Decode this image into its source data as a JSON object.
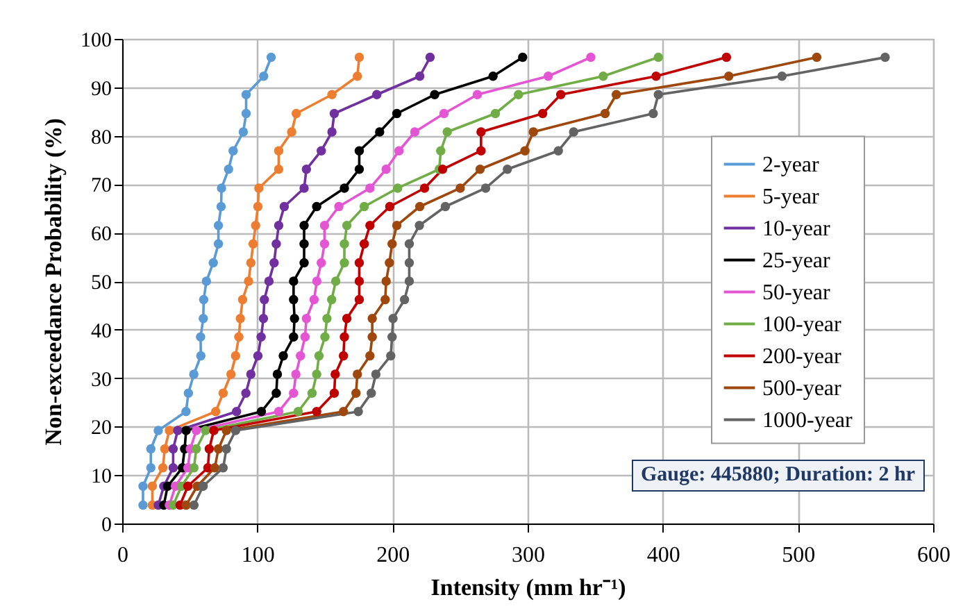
{
  "chart_data": {
    "type": "line",
    "xlabel": "Intensity (mm hr⁻¹)",
    "ylabel": "Non-exceedance Probability (%)",
    "xlim": [
      0,
      600
    ],
    "xticks": [
      0,
      100,
      200,
      300,
      400,
      500,
      600
    ],
    "ylim": [
      0,
      100
    ],
    "yticks": [
      0,
      10,
      20,
      30,
      40,
      50,
      60,
      70,
      80,
      90,
      100
    ],
    "grid": true,
    "legend": "right",
    "marker": "circle",
    "line_style": "solid",
    "annotations": [
      "Gauge: 445880; Duration: 2 hr"
    ],
    "series": [
      {
        "name": "2-year",
        "color": "#5b9bd5",
        "x": [
          15.4,
          15.4,
          21.2,
          21.2,
          26.7,
          47.2,
          49,
          53,
          58.2,
          58,
          60,
          60.3,
          62.3,
          67.4,
          71.2,
          71.2,
          73.2,
          73.5,
          78.7,
          82.1,
          89.6,
          91.7,
          91.7,
          104.7,
          110.2
        ],
        "values": [
          3.8,
          7.7,
          11.5,
          15.4,
          19.2,
          23.1,
          26.9,
          30.8,
          34.6,
          38.5,
          42.3,
          46.2,
          50,
          53.8,
          57.7,
          61.5,
          65.4,
          69.2,
          73.1,
          76.9,
          80.8,
          84.6,
          88.5,
          92.3,
          96.2
        ]
      },
      {
        "name": "5-year",
        "color": "#ed7d31",
        "x": [
          22.3,
          22.3,
          30.1,
          31.5,
          34.9,
          69.2,
          74.7,
          80.5,
          83.9,
          86.3,
          87.4,
          89.1,
          93.5,
          95.2,
          96.9,
          98.7,
          100.4,
          101.1,
          115.8,
          115.8,
          125.4,
          128.8,
          155.2,
          174,
          175.4
        ],
        "values": [
          3.8,
          7.7,
          11.5,
          15.4,
          19.2,
          23.1,
          26.9,
          30.8,
          34.6,
          38.5,
          42.3,
          46.2,
          50,
          53.8,
          57.7,
          61.5,
          65.4,
          69.2,
          73.1,
          76.9,
          80.8,
          84.6,
          88.5,
          92.3,
          96.2
        ]
      },
      {
        "name": "10-year",
        "color": "#7030a0",
        "x": [
          26.7,
          30.8,
          37.7,
          37.7,
          41.1,
          84.6,
          91.5,
          95.2,
          100.4,
          102.8,
          104.5,
          105.2,
          108.6,
          112.4,
          114,
          115.8,
          119.9,
          134.6,
          136.3,
          147.3,
          155.2,
          156.9,
          188.4,
          220.2,
          227.8
        ],
        "values": [
          3.8,
          7.7,
          11.5,
          15.4,
          19.2,
          23.1,
          26.9,
          30.8,
          34.6,
          38.5,
          42.3,
          46.2,
          50,
          53.8,
          57.7,
          61.5,
          65.4,
          69.2,
          73.1,
          76.9,
          80.8,
          84.6,
          88.5,
          92.3,
          96.2
        ]
      },
      {
        "name": "25-year",
        "color": "#000000",
        "x": [
          30.8,
          33.6,
          44.5,
          46.2,
          47.3,
          103,
          114,
          114.8,
          119.2,
          126.8,
          127.5,
          126.8,
          126.8,
          134.6,
          134.6,
          134.6,
          143.9,
          164.4,
          175.4,
          175.4,
          190.5,
          203.2,
          231.2,
          274.4,
          296.3
        ],
        "values": [
          3.8,
          7.7,
          11.5,
          15.4,
          19.2,
          23.1,
          26.9,
          30.8,
          34.6,
          38.5,
          42.3,
          46.2,
          50,
          53.8,
          57.7,
          61.5,
          65.4,
          69.2,
          73.1,
          76.9,
          80.8,
          84.6,
          88.5,
          92.3,
          96.2
        ]
      },
      {
        "name": "50-year",
        "color": "#e455d4",
        "x": [
          34.9,
          39.4,
          48.6,
          50.4,
          54.8,
          115.8,
          126.8,
          128.5,
          131.9,
          135.3,
          136.3,
          142,
          144,
          147.3,
          149.7,
          149.7,
          160.3,
          183.3,
          195.3,
          204.8,
          216.5,
          238.1,
          262.8,
          315.2,
          346.7
        ],
        "values": [
          3.8,
          7.7,
          11.5,
          15.4,
          19.2,
          23.1,
          26.9,
          30.8,
          34.6,
          38.5,
          42.3,
          46.2,
          50,
          53.8,
          57.7,
          61.5,
          65.4,
          69.2,
          73.1,
          76.9,
          80.8,
          84.6,
          88.5,
          92.3,
          96.2
        ]
      },
      {
        "name": "100-year",
        "color": "#70ad47",
        "x": [
          37.7,
          43.9,
          53.1,
          54.8,
          61.7,
          130.2,
          140.5,
          143.9,
          145.6,
          150,
          151.5,
          155,
          158,
          164.4,
          164.4,
          166.2,
          179.1,
          203.8,
          234.6,
          235.7,
          240.5,
          276.1,
          293.2,
          355.9,
          396.7
        ],
        "values": [
          3.8,
          7.7,
          11.5,
          15.4,
          19.2,
          23.1,
          26.9,
          30.8,
          34.6,
          38.5,
          42.3,
          46.2,
          50,
          53.8,
          57.7,
          61.5,
          65.4,
          69.2,
          73.1,
          76.9,
          80.8,
          84.6,
          88.5,
          92.3,
          96.2
        ]
      },
      {
        "name": "200-year",
        "color": "#c00000",
        "x": [
          42.8,
          48.6,
          63.4,
          64.4,
          67.8,
          143.9,
          156.9,
          157.6,
          163.7,
          164.4,
          166.2,
          175.4,
          175.4,
          175.4,
          179.1,
          183.3,
          198,
          223.7,
          237.1,
          265.5,
          265.5,
          311.1,
          324.5,
          395,
          447.1
        ],
        "values": [
          3.8,
          7.7,
          11.5,
          15.4,
          19.2,
          23.1,
          26.9,
          30.8,
          34.6,
          38.5,
          42.3,
          46.2,
          50,
          53.8,
          57.7,
          61.5,
          65.4,
          69.2,
          73.1,
          76.9,
          80.8,
          84.6,
          88.5,
          92.3,
          96.2
        ]
      },
      {
        "name": "500-year",
        "color": "#9e480e",
        "x": [
          47.3,
          55.5,
          68.5,
          71.2,
          77.1,
          163.7,
          173,
          174,
          183.3,
          185,
          185,
          194.6,
          195.3,
          197.7,
          199.7,
          203.2,
          220.2,
          250.1,
          264.8,
          298,
          304.2,
          357.3,
          365.6,
          448.8,
          513.9
        ],
        "values": [
          3.8,
          7.7,
          11.5,
          15.4,
          19.2,
          23.1,
          26.9,
          30.8,
          34.6,
          38.5,
          42.3,
          46.2,
          50,
          53.8,
          57.7,
          61.5,
          65.4,
          69.2,
          73.1,
          76.9,
          80.8,
          84.6,
          88.5,
          92.3,
          96.2
        ]
      },
      {
        "name": "1000-year",
        "color": "#636363",
        "x": [
          53.1,
          59.9,
          74.7,
          77.1,
          83.9,
          174.7,
          184.3,
          187.7,
          198.7,
          199.7,
          200.4,
          208.9,
          212.4,
          212.4,
          212.4,
          219.9,
          239.1,
          268.9,
          285,
          322.7,
          334,
          392.9,
          396.7,
          488.2,
          564.5
        ],
        "values": [
          3.8,
          7.7,
          11.5,
          15.4,
          19.2,
          23.1,
          26.9,
          30.8,
          34.6,
          38.5,
          42.3,
          46.2,
          50,
          53.8,
          57.7,
          61.5,
          65.4,
          69.2,
          73.1,
          76.9,
          80.8,
          84.6,
          88.5,
          92.3,
          96.2
        ]
      }
    ]
  }
}
